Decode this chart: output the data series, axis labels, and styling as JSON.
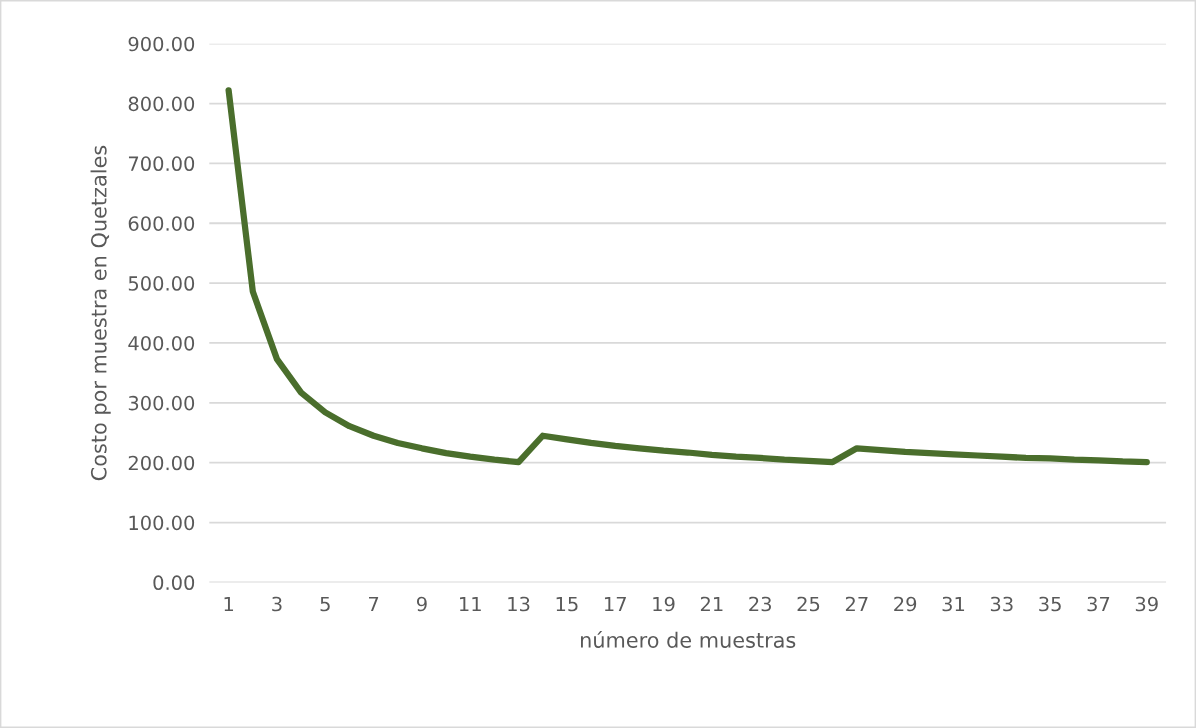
{
  "chart_data": {
    "type": "line",
    "xlabel": "número de muestras",
    "ylabel": "Costo por muestra en Quetzales",
    "categories": [
      "1",
      null,
      "3",
      null,
      "5",
      null,
      "7",
      null,
      "9",
      null,
      "11",
      null,
      "13",
      null,
      "15",
      null,
      "17",
      null,
      "19",
      null,
      "21",
      null,
      "23",
      null,
      "25",
      null,
      "27",
      null,
      "29",
      null,
      "31",
      null,
      "33",
      null,
      "35",
      null,
      "37",
      null,
      "39"
    ],
    "series": [
      {
        "color": "#4a6e2c",
        "values": [
          822,
          486,
          373,
          317,
          284,
          261,
          245,
          233,
          224,
          216,
          210,
          205,
          201,
          245,
          239,
          233,
          228,
          224,
          220,
          217,
          213,
          210,
          208,
          205,
          203,
          201,
          224,
          221,
          218,
          216,
          214,
          212,
          210,
          208,
          207,
          205,
          204,
          202,
          201
        ]
      }
    ],
    "ylim": [
      0,
      900
    ],
    "yticks": [
      {
        "value": 0,
        "label": "0.00"
      },
      {
        "value": 100,
        "label": "100.00"
      },
      {
        "value": 200,
        "label": "200.00"
      },
      {
        "value": 300,
        "label": "300.00"
      },
      {
        "value": 400,
        "label": "400.00"
      },
      {
        "value": 500,
        "label": "500.00"
      },
      {
        "value": 600,
        "label": "600.00"
      },
      {
        "value": 700,
        "label": "700.00"
      },
      {
        "value": 800,
        "label": "800.00"
      },
      {
        "value": 900,
        "label": "900.00"
      }
    ],
    "grid": "y",
    "marker": "none",
    "line_style": "solid",
    "legend": false
  }
}
